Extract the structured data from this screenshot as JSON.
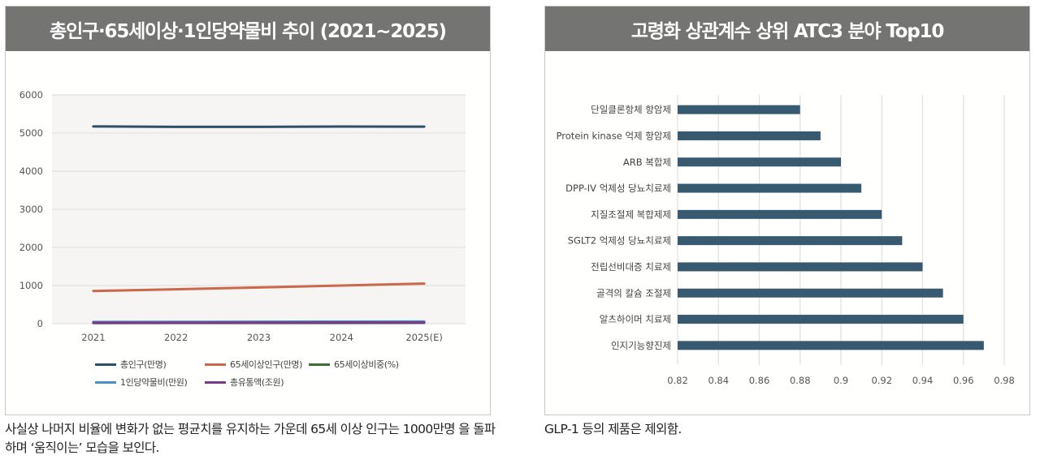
{
  "left_panel": {
    "title": "총인구·65세이상·1인당약물비 추이 (2021~2025)",
    "caption": "사실상 나머지 비율에 변화가 없는 평균치를 유지하는 가운데 65세 이상 인구는 1000만명 을 돌파하며 ‘움직이는’ 모습을 보인다."
  },
  "right_panel": {
    "title": "고령화 상관계수 상위 ATC3 분야 Top10",
    "caption": "GLP-1 등의 제품은 제외함."
  },
  "chart_data": [
    {
      "type": "line",
      "title": "총인구·65세이상·1인당약물비 추이 (2021~2025)",
      "xlabel": "",
      "ylabel": "",
      "categories": [
        "2021",
        "2022",
        "2023",
        "2024",
        "2025(E)"
      ],
      "ylim": [
        0,
        6000
      ],
      "yticks": [
        "0",
        "1000",
        "2000",
        "3000",
        "4000",
        "5000",
        "6000"
      ],
      "grid": true,
      "legend_position": "bottom",
      "series": [
        {
          "name": "총인구(만명)",
          "color": "#2e4f66",
          "values": [
            5174,
            5163,
            5163,
            5171,
            5168
          ]
        },
        {
          "name": "65세이상인구(만명)",
          "color": "#c9684a",
          "values": [
            857,
            902,
            950,
            1000,
            1051
          ]
        },
        {
          "name": "65세이상비중(%)",
          "color": "#3e6b3a",
          "values": [
            16.6,
            17.5,
            18.4,
            19.3,
            20.3
          ]
        },
        {
          "name": "1인당약물비(만원)",
          "color": "#4a90c2",
          "values": [
            45,
            48,
            51,
            54,
            57
          ]
        },
        {
          "name": "총유통액(조원)",
          "color": "#7a3a8a",
          "values": [
            23,
            25,
            26,
            28,
            29
          ]
        }
      ]
    },
    {
      "type": "bar",
      "orientation": "horizontal",
      "title": "고령화 상관계수 상위 ATC3 분야 Top10",
      "xlabel": "",
      "ylabel": "",
      "xlim": [
        0.82,
        0.98
      ],
      "xticks": [
        "0.82",
        "0.84",
        "0.86",
        "0.88",
        "0.9",
        "0.92",
        "0.94",
        "0.96",
        "0.98"
      ],
      "grid": true,
      "bar_color": "#385a70",
      "categories": [
        "단일클론항체 항암제",
        "Protein kinase 억제 항암제",
        "ARB 복합제",
        "DPP-IV 억제성 당뇨치료제",
        "지질조절제 복합제제",
        "SGLT2 억제성 당뇨치료제",
        "전립선비대증 치료제",
        "골격의 칼슘 조절제",
        "알츠하이머 치료제",
        "인지기능향진제"
      ],
      "values": [
        0.88,
        0.89,
        0.9,
        0.91,
        0.92,
        0.93,
        0.94,
        0.95,
        0.96,
        0.97
      ]
    }
  ]
}
